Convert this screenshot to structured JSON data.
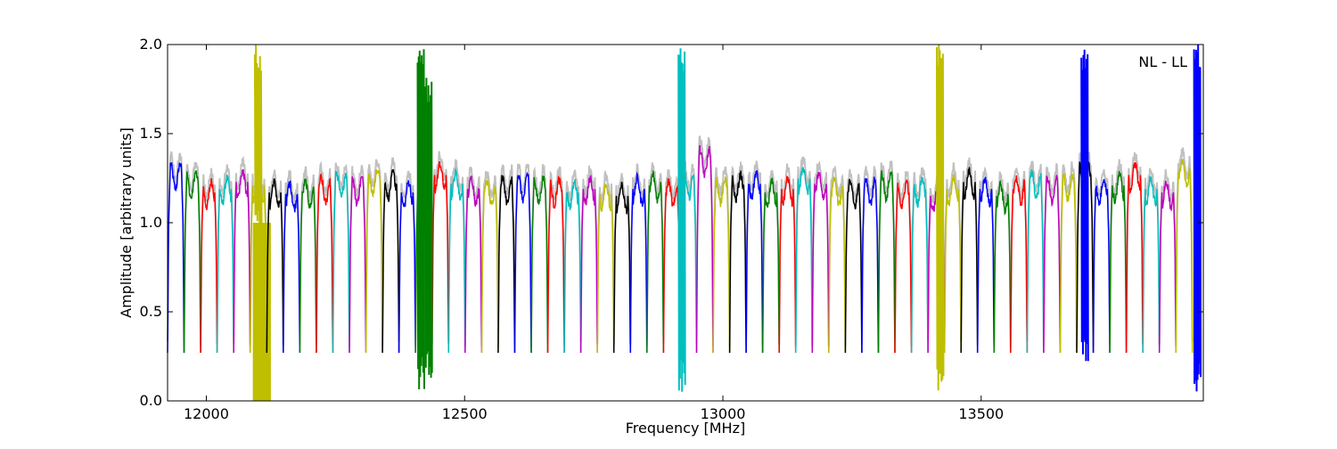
{
  "chart_data": {
    "type": "line",
    "title": "",
    "xlabel": "Frequency [MHz]",
    "ylabel": "Amplitude [arbitrary units]",
    "annotation": "NL - LL",
    "xlim": [
      11925,
      13930
    ],
    "ylim": [
      0.0,
      2.0
    ],
    "x_ticks": [
      12000,
      12500,
      13000,
      13500
    ],
    "y_ticks": [
      0.0,
      0.5,
      1.0,
      1.5,
      2.0
    ],
    "x_tick_labels": [
      "12000",
      "12500",
      "13000",
      "13500"
    ],
    "y_tick_labels": [
      "0.0",
      "0.5",
      "1.0",
      "1.5",
      "2.0"
    ],
    "grid": false,
    "legend": "none",
    "colors": [
      "#0000ff",
      "#008000",
      "#ff0000",
      "#00bfbf",
      "#bf00bf",
      "#bfbf00",
      "#000000"
    ],
    "background_color": "#c0c0c0",
    "channel_start": 11925,
    "channel_width": 32,
    "channel_levels": [
      1.3,
      1.25,
      1.2,
      1.22,
      1.26,
      1.24,
      1.2,
      1.19,
      1.2,
      1.22,
      1.25,
      1.22,
      1.27,
      1.25,
      1.2,
      1.22,
      1.3,
      1.25,
      1.22,
      1.2,
      1.22,
      1.24,
      1.22,
      1.21,
      1.2,
      1.22,
      1.19,
      1.18,
      1.22,
      1.24,
      1.2,
      1.25,
      1.38,
      1.22,
      1.24,
      1.25,
      1.2,
      1.22,
      1.28,
      1.25,
      1.21,
      1.2,
      1.22,
      1.25,
      1.2,
      1.22,
      1.18,
      1.22,
      1.26,
      1.22,
      1.18,
      1.22,
      1.25,
      1.22,
      1.24,
      1.3,
      1.22,
      1.24,
      1.3,
      1.22,
      1.2,
      1.32,
      1.24,
      1.22
    ],
    "spikes": [
      {
        "x": 12100,
        "min": 0.95,
        "max": 2.0,
        "color": "#bfbf00"
      },
      {
        "x": 12415,
        "min": 0.05,
        "max": 2.0,
        "color": "#008000"
      },
      {
        "x": 12430,
        "min": 0.08,
        "max": 1.82,
        "color": "#008000"
      },
      {
        "x": 12920,
        "min": 0.05,
        "max": 2.0,
        "color": "#00bfbf"
      },
      {
        "x": 13420,
        "min": 0.05,
        "max": 2.0,
        "color": "#bfbf00"
      },
      {
        "x": 13700,
        "min": 0.2,
        "max": 2.0,
        "color": "#0000ff"
      },
      {
        "x": 13918,
        "min": 0.05,
        "max": 2.0,
        "color": "#0000ff"
      }
    ],
    "filled_band": {
      "x": [
        12090,
        12125
      ],
      "y": [
        0.0,
        1.0
      ],
      "color": "#bfbf00"
    }
  }
}
